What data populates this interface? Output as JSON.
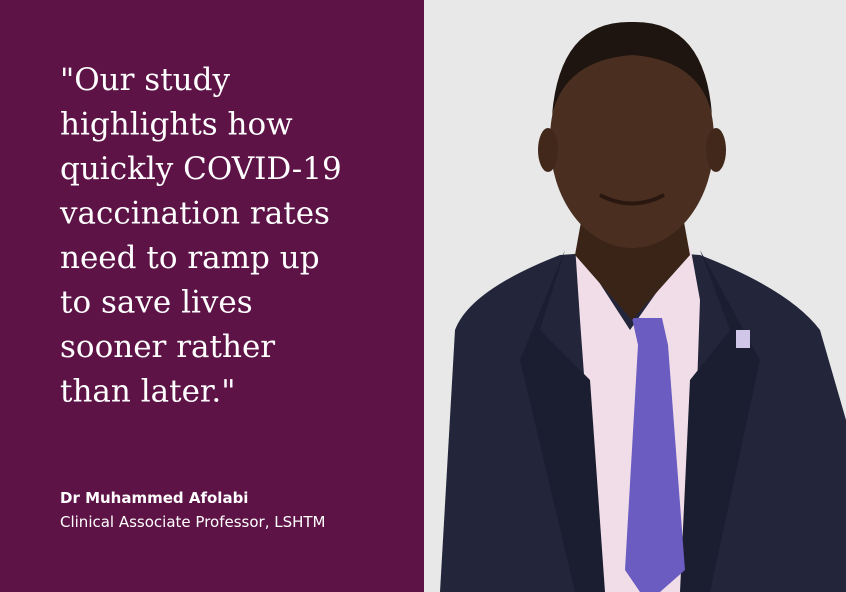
{
  "quote": {
    "lines": [
      "\"Our study",
      "highlights how",
      "quickly COVID-19",
      "vaccination rates",
      "need to ramp up",
      "to save lives",
      "sooner rather",
      "than later.\""
    ]
  },
  "attribution": {
    "name": "Dr Muhammed Afolabi",
    "role": "Clinical Associate Professor, LSHTM"
  }
}
